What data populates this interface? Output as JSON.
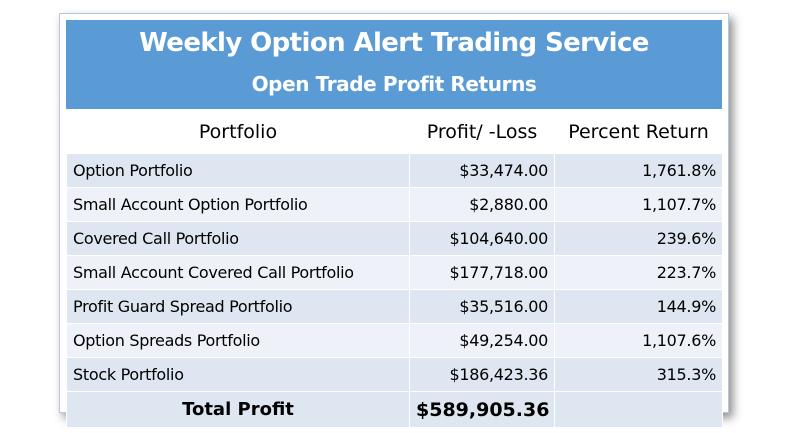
{
  "header": {
    "title": "Weekly Option Alert Trading Service",
    "subtitle": "Open Trade Profit Returns"
  },
  "columns": {
    "portfolio": "Portfolio",
    "profit": "Profit/ -Loss",
    "percent": "Percent Return"
  },
  "rows": [
    {
      "portfolio": "Option Portfolio",
      "profit": "$33,474.00",
      "percent": "1,761.8%"
    },
    {
      "portfolio": "Small Account Option Portfolio",
      "profit": "$2,880.00",
      "percent": "1,107.7%"
    },
    {
      "portfolio": "Covered Call Portfolio",
      "profit": "$104,640.00",
      "percent": "239.6%"
    },
    {
      "portfolio": "Small Account Covered Call Portfolio",
      "profit": "$177,718.00",
      "percent": "223.7%"
    },
    {
      "portfolio": "Profit Guard Spread Portfolio",
      "profit": "$35,516.00",
      "percent": "144.9%"
    },
    {
      "portfolio": "Option Spreads Portfolio",
      "profit": "$49,254.00",
      "percent": "1,107.6%"
    },
    {
      "portfolio": "Stock Portfolio",
      "profit": "$186,423.36",
      "percent": "315.3%"
    }
  ],
  "total": {
    "label": "Total Profit",
    "profit": "$589,905.36",
    "percent": ""
  },
  "colors": {
    "header_bg": "#5b9bd5",
    "row_band_dark": "#dde6f1",
    "row_band_light": "#eef2f8"
  }
}
